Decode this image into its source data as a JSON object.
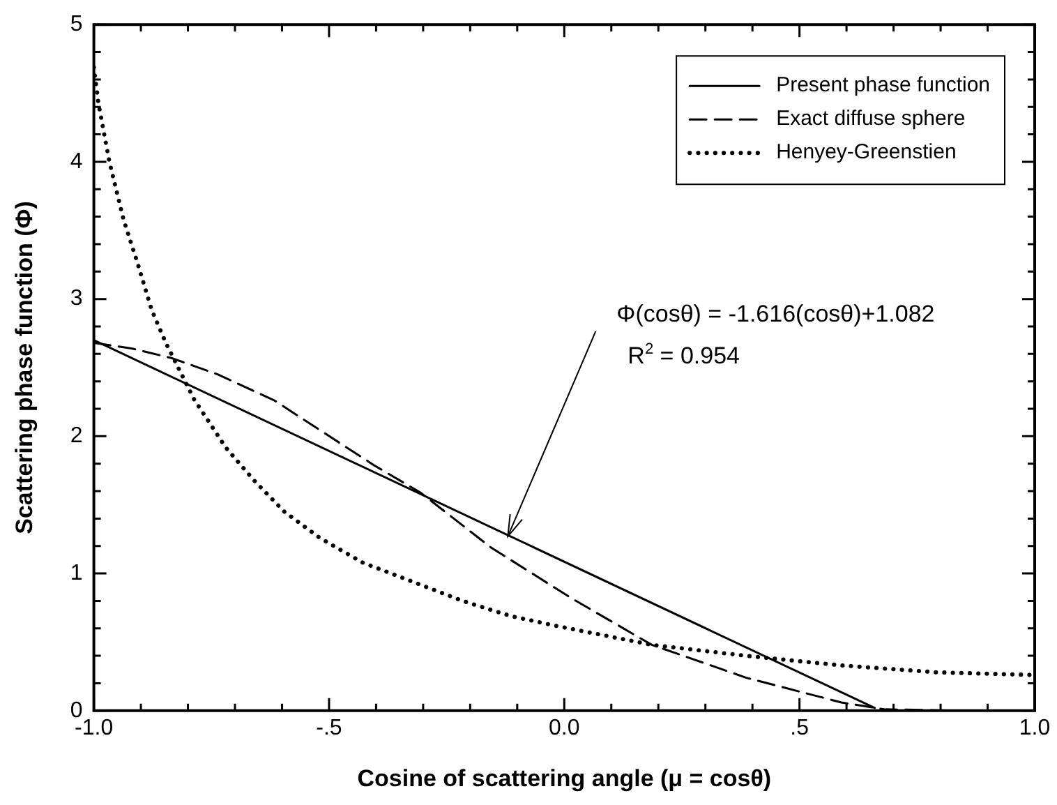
{
  "chart_data": {
    "type": "line",
    "xlabel": "Cosine of scattering angle (μ = cosθ)",
    "ylabel": "Scattering phase function (Φ)",
    "xlim": [
      -1,
      1
    ],
    "ylim": [
      0,
      5
    ],
    "xticks": [
      {
        "value": -1,
        "label": "-1.0"
      },
      {
        "value": -0.9,
        "label": null
      },
      {
        "value": -0.8,
        "label": null
      },
      {
        "value": -0.7,
        "label": null
      },
      {
        "value": -0.6,
        "label": null
      },
      {
        "value": -0.5,
        "label": "-.5"
      },
      {
        "value": -0.4,
        "label": null
      },
      {
        "value": -0.3,
        "label": null
      },
      {
        "value": -0.2,
        "label": null
      },
      {
        "value": -0.1,
        "label": null
      },
      {
        "value": 0,
        "label": "0.0"
      },
      {
        "value": 0.1,
        "label": null
      },
      {
        "value": 0.2,
        "label": null
      },
      {
        "value": 0.3,
        "label": null
      },
      {
        "value": 0.4,
        "label": null
      },
      {
        "value": 0.5,
        "label": ".5"
      },
      {
        "value": 0.6,
        "label": null
      },
      {
        "value": 0.7,
        "label": null
      },
      {
        "value": 0.8,
        "label": null
      },
      {
        "value": 0.9,
        "label": null
      },
      {
        "value": 1,
        "label": "1.0"
      }
    ],
    "yticks": [
      0,
      {
        "value": 0.2,
        "label": null
      },
      {
        "value": 0.4,
        "label": null
      },
      {
        "value": 0.6,
        "label": null
      },
      {
        "value": 0.8,
        "label": null
      },
      1,
      {
        "value": 1.2,
        "label": null
      },
      {
        "value": 1.4,
        "label": null
      },
      {
        "value": 1.6,
        "label": null
      },
      {
        "value": 1.8,
        "label": null
      },
      2,
      {
        "value": 2.2,
        "label": null
      },
      {
        "value": 2.4,
        "label": null
      },
      {
        "value": 2.6,
        "label": null
      },
      {
        "value": 2.8,
        "label": null
      },
      3,
      {
        "value": 3.2,
        "label": null
      },
      {
        "value": 3.4,
        "label": null
      },
      {
        "value": 3.6,
        "label": null
      },
      {
        "value": 3.8,
        "label": null
      },
      4,
      {
        "value": 4.2,
        "label": null
      },
      {
        "value": 4.4,
        "label": null
      },
      {
        "value": 4.6,
        "label": null
      },
      {
        "value": 4.8,
        "label": null
      },
      5
    ],
    "grid": false,
    "legend": "top right",
    "marker": "none",
    "series": [
      {
        "name": "Present phase function",
        "color": "#000000",
        "line_style": "solid",
        "x": [
          -1,
          0.66
        ],
        "values": [
          2.7,
          0.02
        ]
      },
      {
        "name": "Exact diffuse sphere",
        "color": "#000000",
        "line_style": "dashed",
        "x": [
          -1,
          -0.92,
          -0.835,
          -0.736,
          -0.616,
          -0.405,
          -0.306,
          -0.156,
          0.015,
          0.186,
          0.387,
          0.589,
          0.68,
          0.85
        ],
        "values": [
          2.68,
          2.64,
          2.57,
          2.45,
          2.26,
          1.79,
          1.59,
          1.19,
          0.82,
          0.48,
          0.24,
          0.06,
          0.01,
          0
        ]
      },
      {
        "name": "Henyey-Greenstien",
        "color": "#000000",
        "line_style": "dotted",
        "x": [
          -1,
          -0.99,
          -0.967,
          -0.937,
          -0.907,
          -0.877,
          -0.847,
          -0.787,
          -0.72,
          -0.66,
          -0.595,
          -0.52,
          -0.429,
          -0.33,
          -0.216,
          -0.114,
          -0.02,
          0.186,
          0.387,
          0.589,
          0.79,
          1
        ],
        "values": [
          4.69,
          4.42,
          4,
          3.58,
          3.26,
          2.92,
          2.68,
          2.27,
          1.92,
          1.68,
          1.45,
          1.26,
          1.08,
          0.95,
          0.8,
          0.69,
          0.62,
          0.48,
          0.4,
          0.33,
          0.28,
          0.26
        ]
      }
    ],
    "annotations": [
      {
        "text": "Φ(cosθ) = -1.616(cosθ)+1.082",
        "x": -0.12,
        "y": 1.27
      },
      "R$^{2}$ = 0.954"
    ]
  }
}
